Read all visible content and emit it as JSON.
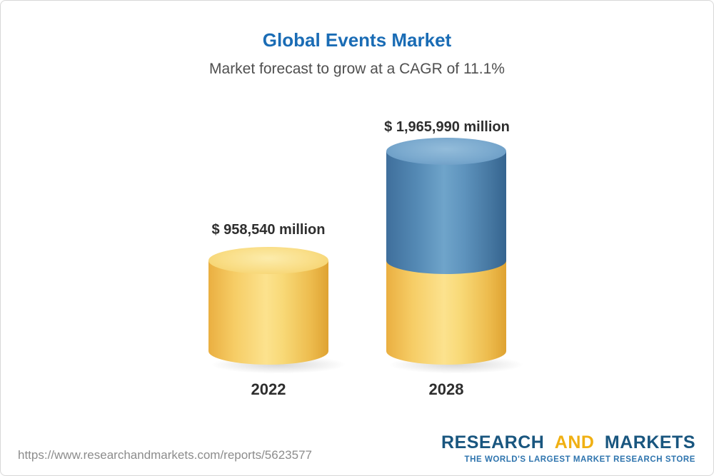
{
  "colors": {
    "title_blue": "#1a6cb5",
    "text_dark": "#2e2e2e",
    "subtitle_gray": "#4f4f4f",
    "url_gray": "#8c8c8c",
    "bar_yellow": "#f6d36b",
    "bar_blue": "#4e81ad",
    "logo_navy": "#19567f",
    "logo_gold": "#f0b013",
    "logo_tagline_blue": "#2e74ae"
  },
  "header": {
    "title": "Global Events Market",
    "subtitle": "Market forecast to grow at a CAGR of 11.1%"
  },
  "chart_data": {
    "type": "bar",
    "bar_style": "3d-cylinder",
    "title": "Global Events Market",
    "subtitle": "Market forecast to grow at a CAGR of 11.1%",
    "categories": [
      "2022",
      "2028"
    ],
    "values": [
      958540,
      1965990
    ],
    "data_labels": [
      "$ 958,540 million",
      "$ 1,965,990 million"
    ],
    "ylim": [
      0,
      1965990
    ],
    "grid": false,
    "legend": false,
    "cagr_pct": 11.1
  },
  "bars": [
    {
      "category": "2022",
      "value_label": "$ 958,540 million",
      "segments": [
        {
          "value": 958540,
          "color_name": "yellow"
        }
      ]
    },
    {
      "category": "2028",
      "value_label": "$ 1,965,990 million",
      "segments": [
        {
          "value": 958540,
          "color_name": "yellow"
        },
        {
          "value": 1007450,
          "color_name": "blue"
        }
      ]
    }
  ],
  "footer": {
    "url": "https://www.researchandmarkets.com/reports/5623577",
    "logo": {
      "word1": "RESEARCH",
      "word2": "AND",
      "word3": "MARKETS",
      "tagline": "THE WORLD'S LARGEST MARKET RESEARCH STORE"
    }
  }
}
